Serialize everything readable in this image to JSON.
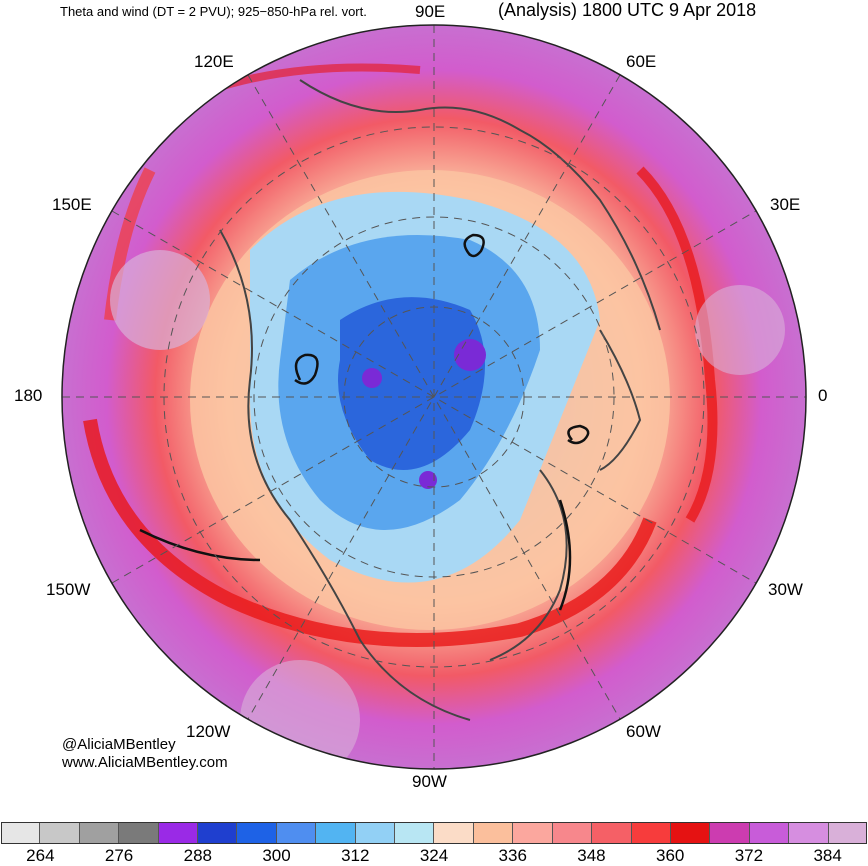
{
  "header": {
    "title_left": "Theta and wind (DT = 2 PVU); 925−850-hPa rel. vort.",
    "title_right": "(Analysis) 1800 UTC 9 Apr 2018"
  },
  "longitude_labels": [
    "90E",
    "60E",
    "30E",
    "0",
    "30W",
    "60W",
    "90W",
    "120W",
    "150W",
    "180",
    "150E",
    "120E"
  ],
  "credit": {
    "twitter": "@AliciaMBentley",
    "website": "www.AliciaMBentley.com"
  },
  "colorbar": {
    "colors": [
      "#e6e6e6",
      "#c8c8c8",
      "#a0a0a0",
      "#7a7a7a",
      "#9a2ae6",
      "#1f3fcf",
      "#1e62e6",
      "#4f8ef0",
      "#52b4f2",
      "#92d0f5",
      "#b8e6f3",
      "#fbdcc7",
      "#fbbf9c",
      "#fba79e",
      "#f7878c",
      "#f56066",
      "#f73c3c",
      "#e51212",
      "#cc3cb0",
      "#c85cd9",
      "#d68ee0",
      "#d9b0d9"
    ],
    "labels": [
      "264",
      "276",
      "288",
      "300",
      "312",
      "324",
      "336",
      "348",
      "360",
      "372",
      "384"
    ]
  }
}
